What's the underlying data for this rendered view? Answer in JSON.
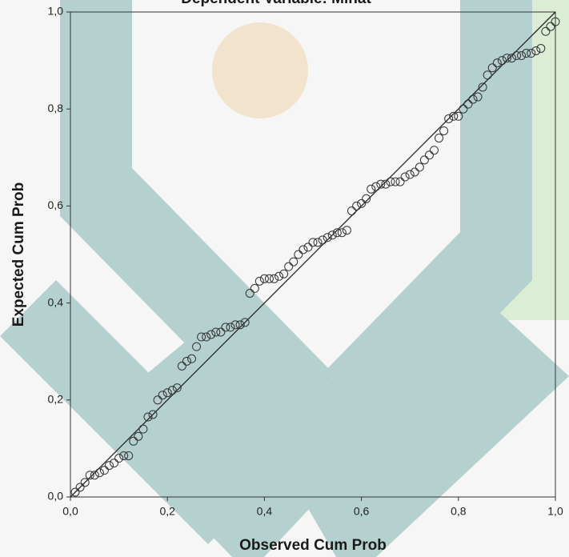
{
  "chart_data": {
    "type": "scatter",
    "title": "Dependent Variable: Minat",
    "xlabel": "Observed Cum Prob",
    "ylabel": "Expected Cum Prob",
    "xlim": [
      0,
      1
    ],
    "ylim": [
      0,
      1
    ],
    "xticks": [
      {
        "value": 0,
        "label": "0,0"
      },
      {
        "value": 0.2,
        "label": "0,2"
      },
      {
        "value": 0.4,
        "label": "0,4"
      },
      {
        "value": 0.6,
        "label": "0,6"
      },
      {
        "value": 0.8,
        "label": "0,8"
      },
      {
        "value": 1,
        "label": "1,0"
      }
    ],
    "yticks": [
      {
        "value": 0,
        "label": "0,0"
      },
      {
        "value": 0.2,
        "label": "0,2"
      },
      {
        "value": 0.4,
        "label": "0,4"
      },
      {
        "value": 0.6,
        "label": "0,6"
      },
      {
        "value": 0.8,
        "label": "0,8"
      },
      {
        "value": 1,
        "label": "1,0"
      }
    ],
    "reference_line": true,
    "series": [
      {
        "color": "#333333",
        "x": [
          0.01,
          0.02,
          0.03,
          0.04,
          0.05,
          0.06,
          0.07,
          0.08,
          0.09,
          0.1,
          0.11,
          0.12,
          0.13,
          0.14,
          0.15,
          0.16,
          0.17,
          0.18,
          0.19,
          0.2,
          0.21,
          0.22,
          0.23,
          0.24,
          0.25,
          0.26,
          0.27,
          0.28,
          0.29,
          0.3,
          0.31,
          0.32,
          0.33,
          0.34,
          0.35,
          0.36,
          0.37,
          0.38,
          0.39,
          0.4,
          0.41,
          0.42,
          0.43,
          0.44,
          0.45,
          0.46,
          0.47,
          0.48,
          0.49,
          0.5,
          0.51,
          0.52,
          0.53,
          0.54,
          0.55,
          0.56,
          0.57,
          0.58,
          0.59,
          0.6,
          0.61,
          0.62,
          0.63,
          0.64,
          0.65,
          0.66,
          0.67,
          0.68,
          0.69,
          0.7,
          0.71,
          0.72,
          0.73,
          0.74,
          0.75,
          0.76,
          0.77,
          0.78,
          0.79,
          0.8,
          0.81,
          0.82,
          0.83,
          0.84,
          0.85,
          0.86,
          0.87,
          0.88,
          0.89,
          0.9,
          0.91,
          0.92,
          0.93,
          0.94,
          0.95,
          0.96,
          0.97,
          0.98,
          0.99,
          1.0
        ],
        "values": [
          0.01,
          0.02,
          0.03,
          0.045,
          0.045,
          0.05,
          0.055,
          0.065,
          0.07,
          0.08,
          0.085,
          0.085,
          0.115,
          0.125,
          0.14,
          0.165,
          0.17,
          0.2,
          0.21,
          0.215,
          0.22,
          0.225,
          0.27,
          0.28,
          0.285,
          0.31,
          0.33,
          0.33,
          0.335,
          0.34,
          0.34,
          0.35,
          0.35,
          0.355,
          0.355,
          0.36,
          0.42,
          0.43,
          0.445,
          0.45,
          0.45,
          0.45,
          0.455,
          0.46,
          0.475,
          0.485,
          0.5,
          0.51,
          0.515,
          0.525,
          0.525,
          0.53,
          0.535,
          0.54,
          0.545,
          0.545,
          0.55,
          0.59,
          0.6,
          0.605,
          0.615,
          0.635,
          0.64,
          0.645,
          0.645,
          0.65,
          0.65,
          0.65,
          0.66,
          0.665,
          0.67,
          0.68,
          0.695,
          0.705,
          0.715,
          0.74,
          0.755,
          0.78,
          0.785,
          0.785,
          0.8,
          0.81,
          0.82,
          0.825,
          0.845,
          0.87,
          0.885,
          0.895,
          0.9,
          0.905,
          0.905,
          0.91,
          0.91,
          0.915,
          0.915,
          0.92,
          0.925,
          0.96,
          0.97,
          0.98
        ]
      }
    ]
  }
}
